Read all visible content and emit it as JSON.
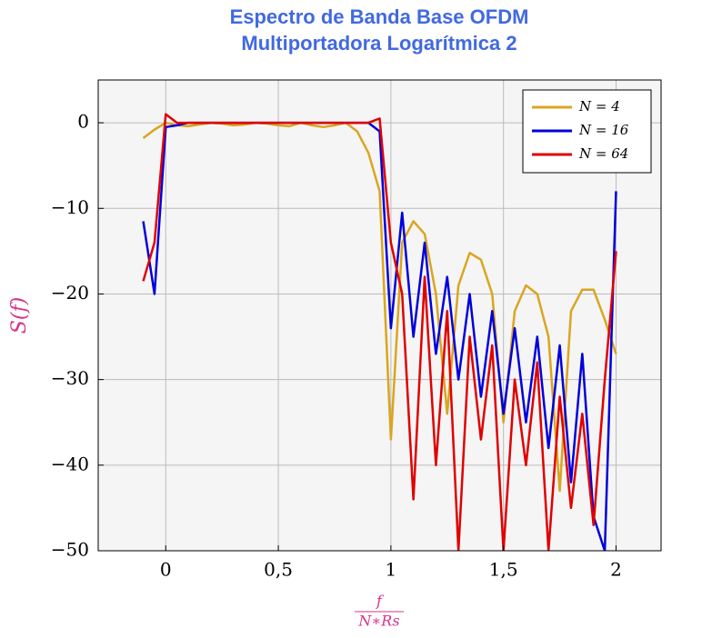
{
  "chart_data": {
    "type": "line",
    "title": [
      "Espectro de Banda Base OFDM",
      "Multiportadora Logarítmica 2"
    ],
    "y_label": "S(f)",
    "x_label": {
      "numerator": "f",
      "denominator": "N∗Rs"
    },
    "xlim": [
      -0.3,
      2.2
    ],
    "ylim": [
      -50,
      5
    ],
    "xticks": [
      0,
      {
        "value": 0.5,
        "label": "0,5"
      },
      1,
      {
        "value": 1.5,
        "label": "1,5"
      },
      2
    ],
    "yticks": [
      0,
      {
        "value": -10,
        "label": "−10"
      },
      {
        "value": -20,
        "label": "−20"
      },
      {
        "value": -30,
        "label": "−30"
      },
      {
        "value": -40,
        "label": "−40"
      },
      {
        "value": -50,
        "label": "−50"
      }
    ],
    "grid": true,
    "legend": "top-right",
    "x": [
      -0.1,
      -0.05,
      0,
      0.05,
      0.1,
      0.15,
      0.2,
      0.25,
      0.3,
      0.35,
      0.4,
      0.45,
      0.5,
      0.55,
      0.6,
      0.65,
      0.7,
      0.75,
      0.8,
      0.85,
      0.9,
      0.95,
      1.0,
      1.05,
      1.1,
      1.15,
      1.2,
      1.25,
      1.3,
      1.35,
      1.4,
      1.45,
      1.5,
      1.55,
      1.6,
      1.65,
      1.7,
      1.75,
      1.8,
      1.85,
      1.9,
      1.95,
      2.0
    ],
    "series": [
      {
        "name": "N = 4",
        "color": "#daa520",
        "values": [
          -1.8,
          -0.8,
          0,
          -0.3,
          -0.4,
          -0.2,
          0,
          -0.1,
          -0.3,
          -0.2,
          0,
          -0.1,
          -0.3,
          -0.4,
          0,
          -0.3,
          -0.5,
          -0.3,
          0,
          -1,
          -3.5,
          -8,
          -37,
          -14,
          -11.5,
          -13,
          -20,
          -34,
          -19,
          -15.2,
          -16,
          -20,
          -35,
          -22,
          -19,
          -20,
          -25,
          -43,
          -22,
          -19.5,
          -19.5,
          -23,
          -27
        ]
      },
      {
        "name": "N = 16",
        "color": "#0000dd",
        "values": [
          -11.5,
          -20,
          -0.5,
          -0.3,
          0,
          0,
          0,
          0,
          0,
          0,
          0,
          0,
          0,
          0,
          0,
          0,
          0,
          0,
          0,
          0,
          0,
          -1,
          -24,
          -10.5,
          -25,
          -14,
          -27,
          -18,
          -30,
          -20,
          -32,
          -22,
          -34,
          -24,
          -35,
          -25,
          -38,
          -26,
          -42,
          -27,
          -46,
          -50,
          -8
        ]
      },
      {
        "name": "N = 64",
        "color": "#e00000",
        "values": [
          -18.5,
          -14,
          1,
          0,
          0,
          0,
          0,
          0,
          0,
          0,
          0,
          0,
          0,
          0,
          0,
          0,
          0,
          0,
          0,
          0,
          0,
          0.5,
          -14,
          -20,
          -44,
          -18,
          -40,
          -22,
          -50,
          -25,
          -37,
          -26,
          -50,
          -30,
          -40,
          -28,
          -50,
          -32,
          -45,
          -34,
          -47,
          -30,
          -15
        ]
      }
    ]
  }
}
